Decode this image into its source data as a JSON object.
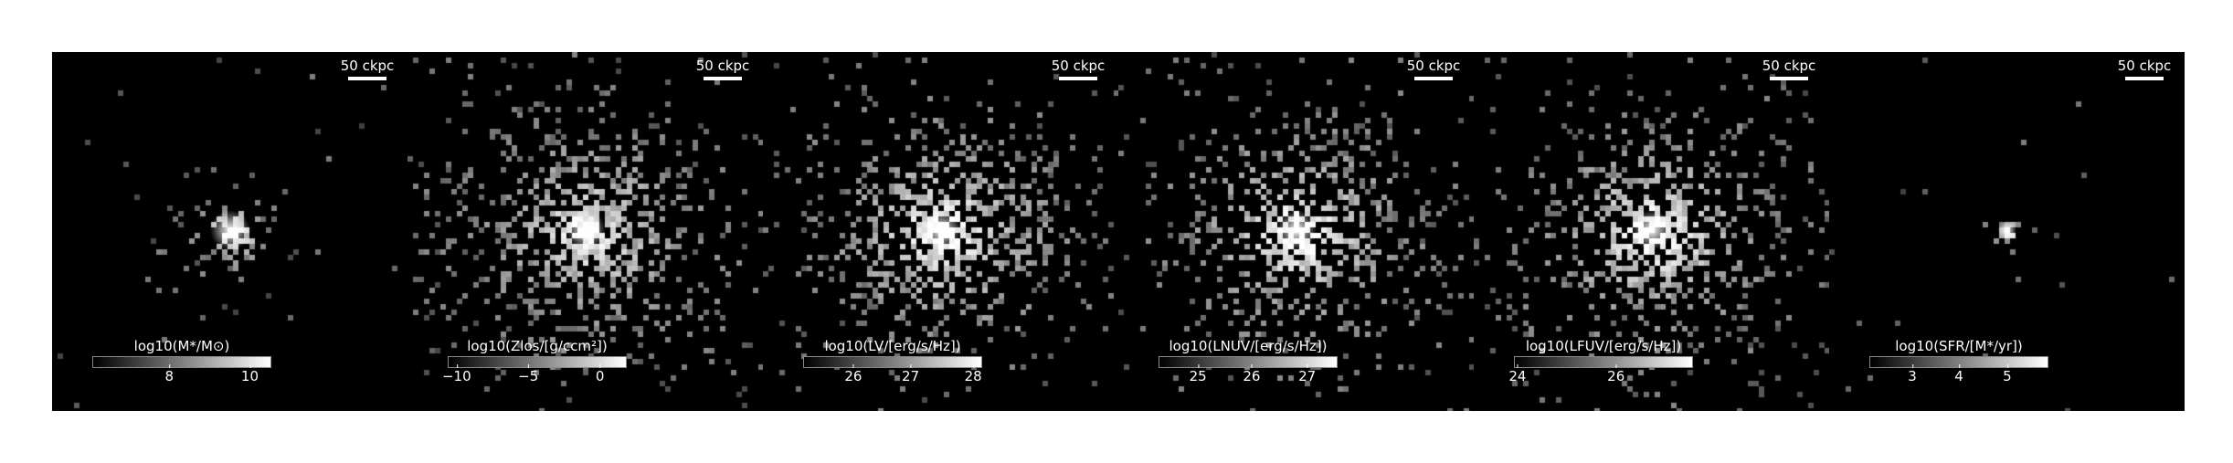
{
  "scale_bar_label": "50 ckpc",
  "panels": [
    {
      "colorbar_label": "log10(M*/M⊙)",
      "ticks": [
        {
          "label": "8",
          "frac": 0.43
        },
        {
          "label": "10",
          "frac": 0.88
        }
      ]
    },
    {
      "colorbar_label": "log10(Zlos/[g/ccm²])",
      "ticks": [
        {
          "label": "−10",
          "frac": 0.05
        },
        {
          "label": "−5",
          "frac": 0.45
        },
        {
          "label": "0",
          "frac": 0.85
        }
      ]
    },
    {
      "colorbar_label": "log10(LV/[erg/s/Hz])",
      "ticks": [
        {
          "label": "26",
          "frac": 0.28
        },
        {
          "label": "27",
          "frac": 0.6
        },
        {
          "label": "28",
          "frac": 0.95
        }
      ]
    },
    {
      "colorbar_label": "log10(LNUV/[erg/s/Hz])",
      "ticks": [
        {
          "label": "25",
          "frac": 0.22
        },
        {
          "label": "26",
          "frac": 0.52
        },
        {
          "label": "27",
          "frac": 0.83
        }
      ]
    },
    {
      "colorbar_label": "log10(LFUV/[erg/s/Hz])",
      "ticks": [
        {
          "label": "24",
          "frac": 0.02
        },
        {
          "label": "26",
          "frac": 0.57
        }
      ]
    },
    {
      "colorbar_label": "log10(SFR/[M*/yr])",
      "ticks": [
        {
          "label": "3",
          "frac": 0.24
        },
        {
          "label": "4",
          "frac": 0.5
        },
        {
          "label": "5",
          "frac": 0.77
        }
      ]
    }
  ]
}
